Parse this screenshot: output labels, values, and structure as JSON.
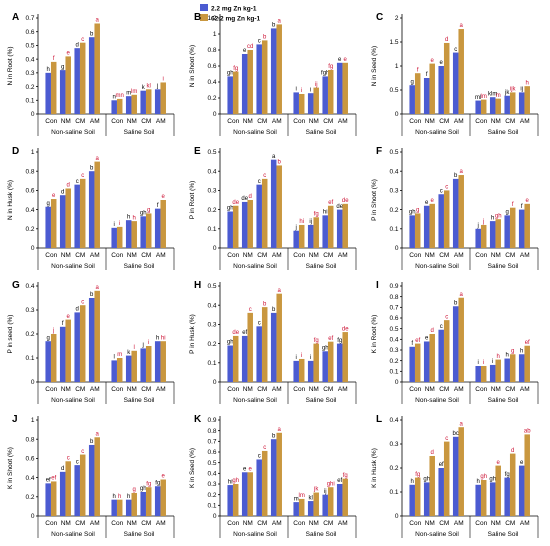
{
  "colors": {
    "low_zn": "#4b5bd1",
    "high_zn": "#c9973f",
    "letters_low": "#000000",
    "letters_high": "#cc1133"
  },
  "legend": [
    {
      "label": "2.2 mg Zn kg-1",
      "color": "#4b5bd1"
    },
    {
      "label": "62.2 mg Zn kg-1",
      "color": "#c9973f"
    }
  ],
  "chart_data": [
    {
      "type": "bar",
      "panel": "A",
      "ylabel": "N in Root (%)",
      "ylim": [
        0,
        0.7
      ],
      "yticks": [
        "0",
        "0.1",
        "0.2",
        "0.3",
        "0.4",
        "0.5",
        "0.6",
        "0.7"
      ],
      "categories": [
        "Con",
        "NM",
        "CM",
        "AM",
        "Con",
        "NM",
        "CM",
        "AM"
      ],
      "groups": [
        "Non-saline Soil",
        "Saline Soil"
      ],
      "series": [
        {
          "name": "2.2 mg Zn kg-1",
          "values": [
            0.3,
            0.32,
            0.48,
            0.56,
            0.1,
            0.13,
            0.17,
            0.18
          ],
          "letters": [
            "h",
            "g",
            "d",
            "b",
            "n",
            "m",
            "k",
            "j"
          ]
        },
        {
          "name": "62.2 mg Zn kg-1",
          "values": [
            0.38,
            0.42,
            0.52,
            0.66,
            0.11,
            0.14,
            0.18,
            0.23
          ],
          "letters": [
            "f",
            "e",
            "c",
            "a",
            "mn",
            "lm",
            "kl",
            "i"
          ]
        }
      ]
    },
    {
      "type": "bar",
      "panel": "B",
      "ylabel": "N in Shoot (%)",
      "ylim": [
        0,
        1.2
      ],
      "yticks": [
        "0",
        "0.2",
        "0.4",
        "0.6",
        "0.8",
        "1",
        "1.2"
      ],
      "categories": [
        "Con",
        "NM",
        "CM",
        "AM",
        "Con",
        "NM",
        "CM",
        "AM"
      ],
      "groups": [
        "Non-saline Soil",
        "Saline Soil"
      ],
      "series": [
        {
          "name": "2.2 mg Zn kg-1",
          "values": [
            0.47,
            0.75,
            0.87,
            1.07,
            0.27,
            0.26,
            0.47,
            0.64
          ],
          "letters": [
            "gh",
            "e",
            "c",
            "b",
            "i",
            "i",
            "fgh",
            "e"
          ]
        },
        {
          "name": "62.2 mg Zn kg-1",
          "values": [
            0.53,
            0.8,
            0.92,
            1.12,
            0.25,
            0.33,
            0.55,
            0.64
          ],
          "letters": [
            "fg",
            "cd",
            "b",
            "a",
            "i",
            "ij",
            "fg",
            "e"
          ]
        }
      ]
    },
    {
      "type": "bar",
      "panel": "C",
      "ylabel": "N in Seed (%)",
      "ylim": [
        0,
        2
      ],
      "yticks": [
        "0",
        "0.5",
        "1",
        "1.5",
        "2"
      ],
      "categories": [
        "Con",
        "NM",
        "CM",
        "AM",
        "Con",
        "NM",
        "CM",
        "AM"
      ],
      "groups": [
        "Non-saline Soil",
        "Saline Soil"
      ],
      "series": [
        {
          "name": "2.2 mg Zn kg-1",
          "values": [
            0.6,
            0.75,
            1.0,
            1.28,
            0.28,
            0.35,
            0.38,
            0.45
          ],
          "letters": [
            "g",
            "f",
            "e",
            "c",
            "ml",
            "klm",
            "jk",
            "ij"
          ]
        },
        {
          "name": "62.2 mg Zn kg-1",
          "values": [
            0.85,
            1.05,
            1.48,
            1.77,
            0.3,
            0.32,
            0.45,
            0.58
          ],
          "letters": [
            "f",
            "e",
            "d",
            "a",
            "lm",
            "m",
            "ijk",
            "h"
          ]
        }
      ]
    },
    {
      "type": "bar",
      "panel": "D",
      "ylabel": "N in Husk (%)",
      "ylim": [
        0,
        1
      ],
      "yticks": [
        "0",
        "0.2",
        "0.4",
        "0.6",
        "0.8",
        "1"
      ],
      "categories": [
        "Con",
        "NM",
        "CM",
        "AM",
        "Con",
        "NM",
        "CM",
        "AM"
      ],
      "groups": [
        "Non-saline Soil",
        "Saline Soil"
      ],
      "series": [
        {
          "name": "2.2 mg Zn kg-1",
          "values": [
            0.43,
            0.55,
            0.66,
            0.8,
            0.21,
            0.29,
            0.33,
            0.41
          ],
          "letters": [
            "g",
            "d",
            "c",
            "b",
            "i",
            "h",
            "gh",
            "f"
          ]
        },
        {
          "name": "62.2 mg Zn kg-1",
          "values": [
            0.51,
            0.62,
            0.72,
            0.9,
            0.22,
            0.28,
            0.36,
            0.5
          ],
          "letters": [
            "e",
            "d",
            "c",
            "a",
            "i",
            "h",
            "g",
            "e"
          ]
        }
      ]
    },
    {
      "type": "bar",
      "panel": "E",
      "ylabel": "P in Root (%)",
      "ylim": [
        0,
        0.5
      ],
      "yticks": [
        "0",
        "0.1",
        "0.2",
        "0.3",
        "0.4",
        "0.5"
      ],
      "categories": [
        "Con",
        "NM",
        "CM",
        "AM",
        "Con",
        "NM",
        "CM",
        "AM"
      ],
      "groups": [
        "Non-saline Soil",
        "Saline Soil"
      ],
      "series": [
        {
          "name": "2.2 mg Zn kg-1",
          "values": [
            0.19,
            0.24,
            0.33,
            0.46,
            0.09,
            0.12,
            0.17,
            0.2
          ],
          "letters": [
            "gh",
            "de",
            "c",
            "a",
            "j",
            "ij",
            "hi",
            "de"
          ]
        },
        {
          "name": "62.2 mg Zn kg-1",
          "values": [
            0.22,
            0.25,
            0.36,
            0.43,
            0.12,
            0.16,
            0.22,
            0.23
          ],
          "letters": [
            "de",
            "d",
            "c",
            "b",
            "hi",
            "fg",
            "ef",
            "de"
          ]
        }
      ]
    },
    {
      "type": "bar",
      "panel": "F",
      "ylabel": "P in Shoot (%)",
      "ylim": [
        0,
        0.5
      ],
      "yticks": [
        "0",
        "0.1",
        "0.2",
        "0.3",
        "0.4",
        "0.5"
      ],
      "categories": [
        "Con",
        "NM",
        "CM",
        "AM",
        "Con",
        "NM",
        "CM",
        "AM"
      ],
      "groups": [
        "Non-saline Soil",
        "Saline Soil"
      ],
      "series": [
        {
          "name": "2.2 mg Zn kg-1",
          "values": [
            0.17,
            0.22,
            0.28,
            0.36,
            0.1,
            0.14,
            0.17,
            0.2
          ],
          "letters": [
            "gh",
            "e",
            "c",
            "b",
            "j",
            "h",
            "g",
            "f"
          ]
        },
        {
          "name": "62.2 mg Zn kg-1",
          "values": [
            0.18,
            0.23,
            0.3,
            0.38,
            0.12,
            0.15,
            0.21,
            0.23
          ],
          "letters": [
            "g",
            "e",
            "c",
            "a",
            "j",
            "gh",
            "f",
            "e"
          ]
        }
      ]
    },
    {
      "type": "bar",
      "panel": "G",
      "ylabel": "P in seed (%)",
      "ylim": [
        0,
        0.4
      ],
      "yticks": [
        "0",
        "0.1",
        "0.2",
        "0.3",
        "0.4"
      ],
      "categories": [
        "Con",
        "NM",
        "CM",
        "AM",
        "Con",
        "NM",
        "CM",
        "AM"
      ],
      "groups": [
        "Non-saline Soil",
        "Saline Soil"
      ],
      "series": [
        {
          "name": "2.2 mg Zn kg-1",
          "values": [
            0.17,
            0.23,
            0.29,
            0.35,
            0.09,
            0.11,
            0.14,
            0.17
          ],
          "letters": [
            "g",
            "f",
            "d",
            "b",
            "l",
            "k",
            "j",
            "h"
          ]
        },
        {
          "name": "62.2 mg Zn kg-1",
          "values": [
            0.2,
            0.26,
            0.32,
            0.38,
            0.1,
            0.13,
            0.15,
            0.17
          ],
          "letters": [
            "j",
            "e",
            "c",
            "a",
            "m",
            "l",
            "i",
            "hi"
          ]
        }
      ]
    },
    {
      "type": "bar",
      "panel": "H",
      "ylabel": "P in Husk (%)",
      "ylim": [
        0,
        0.5
      ],
      "yticks": [
        "0",
        "0.1",
        "0.2",
        "0.3",
        "0.4",
        "0.5"
      ],
      "categories": [
        "Con",
        "NM",
        "CM",
        "AM",
        "Con",
        "NM",
        "CM",
        "AM"
      ],
      "groups": [
        "Non-saline Soil",
        "Saline Soil"
      ],
      "series": [
        {
          "name": "2.2 mg Zn kg-1",
          "values": [
            0.19,
            0.24,
            0.29,
            0.36,
            0.11,
            0.11,
            0.16,
            0.2
          ],
          "letters": [
            "gh",
            "ef",
            "c",
            "b",
            "i",
            "i",
            "gh",
            "fg"
          ]
        },
        {
          "name": "62.2 mg Zn kg-1",
          "values": [
            0.24,
            0.36,
            0.39,
            0.46,
            0.12,
            0.2,
            0.21,
            0.26
          ],
          "letters": [
            "de",
            "c",
            "b",
            "a",
            "i",
            "fg",
            "ef",
            "de"
          ]
        }
      ]
    },
    {
      "type": "bar",
      "panel": "I",
      "ylabel": "K in Root (%)",
      "ylim": [
        0,
        0.9
      ],
      "yticks": [
        "0",
        "0.1",
        "0.2",
        "0.3",
        "0.4",
        "0.5",
        "0.6",
        "0.7",
        "0.8",
        "0.9"
      ],
      "categories": [
        "Con",
        "NM",
        "CM",
        "AM",
        "Con",
        "NM",
        "CM",
        "AM"
      ],
      "groups": [
        "Non-saline Soil",
        "Saline Soil"
      ],
      "series": [
        {
          "name": "2.2 mg Zn kg-1",
          "values": [
            0.33,
            0.38,
            0.49,
            0.71,
            0.15,
            0.16,
            0.22,
            0.26
          ],
          "letters": [
            "f",
            "e",
            "c",
            "b",
            "i",
            "i",
            "h",
            "h"
          ]
        },
        {
          "name": "62.2 mg Zn kg-1",
          "values": [
            0.36,
            0.45,
            0.58,
            0.79,
            0.15,
            0.21,
            0.26,
            0.34
          ],
          "letters": [
            "ef",
            "d",
            "c",
            "a",
            "i",
            "h",
            "g",
            "ef"
          ]
        }
      ]
    },
    {
      "type": "bar",
      "panel": "J",
      "ylabel": "K in Shoot (%)",
      "ylim": [
        0,
        1
      ],
      "yticks": [
        "0",
        "0.2",
        "0.4",
        "0.6",
        "0.8",
        "1"
      ],
      "categories": [
        "Con",
        "NM",
        "CM",
        "AM",
        "Con",
        "NM",
        "CM",
        "AM"
      ],
      "groups": [
        "Non-saline Soil",
        "Saline Soil"
      ],
      "series": [
        {
          "name": "2.2 mg Zn kg-1",
          "values": [
            0.34,
            0.46,
            0.53,
            0.74,
            0.17,
            0.17,
            0.25,
            0.31
          ],
          "letters": [
            "ef",
            "d",
            "c",
            "b",
            "h",
            "h",
            "gh",
            "fg"
          ]
        },
        {
          "name": "62.2 mg Zn kg-1",
          "values": [
            0.36,
            0.57,
            0.64,
            0.82,
            0.17,
            0.24,
            0.3,
            0.38
          ],
          "letters": [
            "ef",
            "c",
            "c",
            "a",
            "h",
            "g",
            "fg",
            "e"
          ]
        }
      ]
    },
    {
      "type": "bar",
      "panel": "K",
      "ylabel": "K in Seed (%)",
      "ylim": [
        0,
        0.9
      ],
      "yticks": [
        "0",
        "0.1",
        "0.2",
        "0.3",
        "0.4",
        "0.5",
        "0.6",
        "0.7",
        "0.8",
        "0.9"
      ],
      "categories": [
        "Con",
        "NM",
        "CM",
        "AM",
        "Con",
        "NM",
        "CM",
        "AM"
      ],
      "groups": [
        "Non-saline Soil",
        "Saline Soil"
      ],
      "series": [
        {
          "name": "2.2 mg Zn kg-1",
          "values": [
            0.29,
            0.41,
            0.53,
            0.72,
            0.13,
            0.14,
            0.2,
            0.3
          ],
          "letters": [
            "hi",
            "e",
            "c",
            "b",
            "m",
            "kl",
            "ij",
            "ef"
          ]
        },
        {
          "name": "62.2 mg Zn kg-1",
          "values": [
            0.3,
            0.41,
            0.61,
            0.78,
            0.16,
            0.22,
            0.27,
            0.35
          ],
          "letters": [
            "gh",
            "e",
            "c",
            "a",
            "lm",
            "jk",
            "ghi",
            "fg"
          ]
        }
      ]
    },
    {
      "type": "bar",
      "panel": "L",
      "ylabel": "K in Husk (%)",
      "ylim": [
        0,
        0.4
      ],
      "yticks": [
        "0",
        "0.1",
        "0.2",
        "0.3",
        "0.4"
      ],
      "categories": [
        "Con",
        "NM",
        "CM",
        "AM",
        "Con",
        "NM",
        "CM",
        "AM"
      ],
      "groups": [
        "Non-saline Soil",
        "Saline Soil"
      ],
      "series": [
        {
          "name": "2.2 mg Zn kg-1",
          "values": [
            0.13,
            0.14,
            0.2,
            0.33,
            0.13,
            0.14,
            0.16,
            0.21
          ],
          "letters": [
            "h",
            "gh",
            "ef",
            "bc",
            "h",
            "gh",
            "fg",
            "e"
          ]
        },
        {
          "name": "62.2 mg Zn kg-1",
          "values": [
            0.16,
            0.25,
            0.31,
            0.37,
            0.15,
            0.21,
            0.26,
            0.34
          ],
          "letters": [
            "fg",
            "d",
            "c",
            "a",
            "gh",
            "e",
            "d",
            "ab"
          ]
        }
      ]
    }
  ]
}
